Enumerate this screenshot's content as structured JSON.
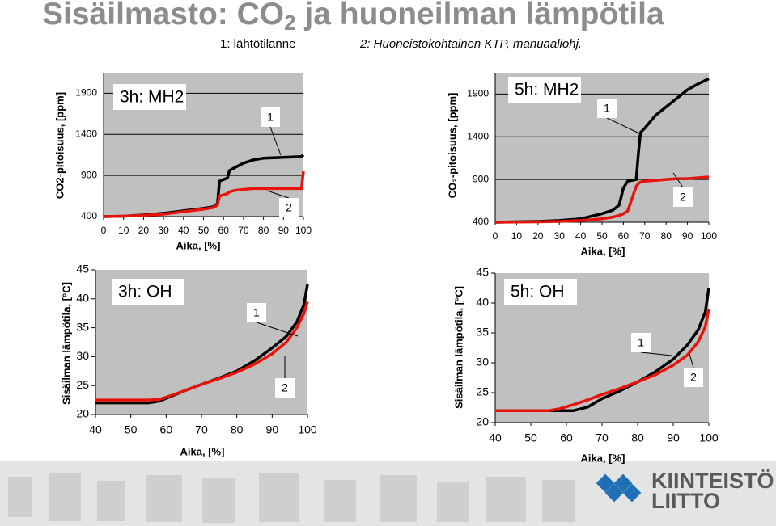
{
  "header": {
    "title": [
      "Sisäilmasto: CO",
      "2",
      " ja huoneilman lämpötila"
    ],
    "notes": [
      "1: lähtötilanne",
      "2: Huoneistokohtainen KTP, manuaaliohj."
    ]
  },
  "logo": [
    "KIINTEISTÖ",
    "LIITTO"
  ],
  "chart_data": [
    {
      "type": "line",
      "panel": "3h: MH2",
      "ylabel": "CO2-pitoisuus, [ppm]",
      "xlabel": "Aika, [%]",
      "xlim": [
        0,
        100
      ],
      "xticks": [
        0,
        10,
        20,
        30,
        40,
        50,
        60,
        70,
        80,
        90,
        100
      ],
      "ylim": [
        400,
        2150
      ],
      "yticks": [
        400,
        900,
        1400,
        1900
      ],
      "grid": true,
      "x": [
        0,
        10,
        20,
        30,
        40,
        50,
        55,
        57,
        58,
        62,
        63,
        66,
        70,
        75,
        80,
        90,
        99,
        100
      ],
      "series": [
        {
          "name": "1",
          "color": "#000000",
          "values": [
            400,
            405,
            420,
            440,
            470,
            500,
            520,
            560,
            830,
            870,
            960,
            1000,
            1050,
            1090,
            1110,
            1120,
            1130,
            1150
          ]
        },
        {
          "name": "2",
          "color": "#e8140c",
          "values": [
            400,
            405,
            415,
            430,
            460,
            490,
            510,
            540,
            650,
            680,
            700,
            720,
            730,
            740,
            740,
            740,
            740,
            950
          ]
        }
      ]
    },
    {
      "type": "line",
      "panel": "5h: MH2",
      "ylabel": "CO₂-pitoisuus, [ppm]",
      "xlabel": "Aika, [%]",
      "xlim": [
        0,
        100
      ],
      "xticks": [
        0,
        10,
        20,
        30,
        40,
        50,
        60,
        70,
        80,
        90,
        100
      ],
      "ylim": [
        400,
        2150
      ],
      "yticks": [
        400,
        900,
        1400,
        1900
      ],
      "grid": true,
      "x": [
        0,
        20,
        30,
        40,
        45,
        50,
        55,
        58,
        60,
        62,
        66,
        67,
        68,
        70,
        75,
        80,
        85,
        90,
        95,
        100
      ],
      "series": [
        {
          "name": "1",
          "color": "#000000",
          "values": [
            400,
            410,
            420,
            440,
            470,
            500,
            540,
            600,
            800,
            880,
            900,
            1200,
            1450,
            1500,
            1650,
            1750,
            1850,
            1950,
            2020,
            2080
          ]
        },
        {
          "name": "2",
          "color": "#e8140c",
          "values": [
            400,
            405,
            410,
            420,
            430,
            440,
            460,
            480,
            500,
            530,
            820,
            850,
            870,
            880,
            890,
            900,
            910,
            910,
            920,
            930
          ]
        }
      ]
    },
    {
      "type": "line",
      "panel": "3h: OH",
      "ylabel": "Sisäilman lämpötila, [°C]",
      "xlabel": "Aika, [%]",
      "xlim": [
        40,
        100
      ],
      "xticks": [
        40,
        50,
        60,
        70,
        80,
        90,
        100
      ],
      "ylim": [
        20,
        45
      ],
      "yticks": [
        20,
        25,
        30,
        35,
        40,
        45
      ],
      "grid": false,
      "x": [
        40,
        50,
        55,
        58,
        62,
        66,
        70,
        75,
        80,
        85,
        90,
        94,
        97,
        99,
        100
      ],
      "series": [
        {
          "name": "1",
          "color": "#000000",
          "values": [
            22,
            22,
            22,
            22.3,
            23.3,
            24.3,
            25.2,
            26.3,
            27.5,
            29.3,
            31.5,
            33.5,
            36,
            39,
            42.5
          ]
        },
        {
          "name": "2",
          "color": "#e8140c",
          "values": [
            22.5,
            22.5,
            22.5,
            22.6,
            23.4,
            24.3,
            25.2,
            26.2,
            27.3,
            28.7,
            30.5,
            32.5,
            35,
            37.5,
            39.5
          ]
        }
      ]
    },
    {
      "type": "line",
      "panel": "5h: OH",
      "ylabel": "Sisäilman lämpötila, [°C]",
      "xlabel": "Aika, [%]",
      "xlim": [
        40,
        100
      ],
      "xticks": [
        40,
        50,
        60,
        70,
        80,
        90,
        100
      ],
      "ylim": [
        20,
        45
      ],
      "yticks": [
        20,
        25,
        30,
        35,
        40,
        45
      ],
      "grid": false,
      "x": [
        40,
        50,
        55,
        58,
        62,
        66,
        70,
        75,
        80,
        85,
        90,
        94,
        97,
        99,
        100
      ],
      "series": [
        {
          "name": "1",
          "color": "#000000",
          "values": [
            22,
            22,
            22,
            22,
            22,
            22.6,
            24,
            25.3,
            26.8,
            28.5,
            30.6,
            33,
            35.5,
            38.5,
            42.5
          ]
        },
        {
          "name": "2",
          "color": "#e8140c",
          "values": [
            22,
            22,
            22,
            22.3,
            23,
            23.8,
            24.7,
            25.7,
            26.8,
            28,
            29.6,
            31.3,
            33.5,
            36,
            39
          ]
        }
      ]
    }
  ]
}
